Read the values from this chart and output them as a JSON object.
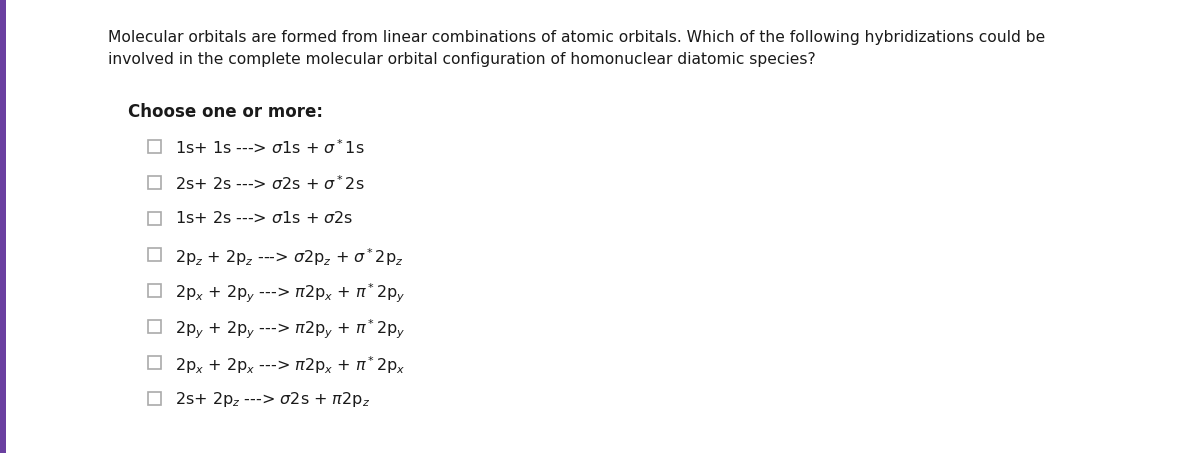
{
  "background_color": "#ffffff",
  "left_bar_color": "#6a3fa0",
  "question_text_line1": "Molecular orbitals are formed from linear combinations of atomic orbitals. Which of the following hybridizations could be",
  "question_text_line2": "involved in the complete molecular orbital configuration of homonuclear diatomic species?",
  "choose_label": "Choose one or more:",
  "fig_width": 12.0,
  "fig_height": 4.53,
  "dpi": 100,
  "text_color": "#1a1a1a",
  "checkbox_color": "#aaaaaa",
  "question_fontsize": 11.2,
  "choose_fontsize": 12.0,
  "option_fontsize": 11.5
}
